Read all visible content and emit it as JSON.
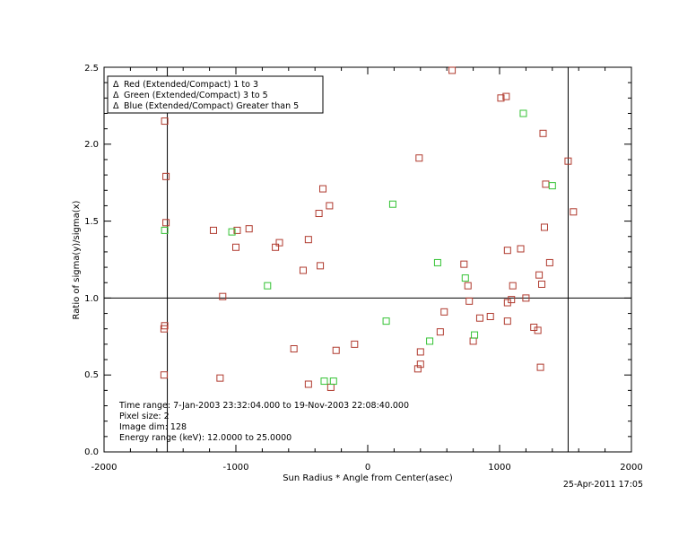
{
  "chart_data": {
    "type": "scatter",
    "title": "",
    "xlabel": "Sun Radius * Angle from Center(asec)",
    "ylabel": "Ratio of sigma(y)/sigma(x)",
    "xlim": [
      -2000,
      2000
    ],
    "ylim": [
      0.0,
      2.5
    ],
    "x_ticks": [
      "-2000",
      "-1000",
      "0",
      "1000",
      "2000"
    ],
    "y_ticks": [
      "0.0",
      "0.5",
      "1.0",
      "1.5",
      "2.0",
      "2.5"
    ],
    "reference_lines": {
      "vertical": [
        -1520,
        1520
      ],
      "horizontal": [
        1.0
      ]
    },
    "grid": false,
    "legend": {
      "placement": "top-left",
      "symbol": "Δ",
      "entries": [
        {
          "label": "Red (Extended/Compact) 1 to 3",
          "color": "#c0392b"
        },
        {
          "label": "Green (Extended/Compact) 3 to 5",
          "color": "#33c233"
        },
        {
          "label": "Blue (Extended/Compact) Greater than 5",
          "color": "#2a2aa0"
        }
      ]
    },
    "series": [
      {
        "name": "Red (Extended/Compact) 1 to 3",
        "color": "#b03a2e",
        "marker": "square",
        "points": [
          [
            -1540,
            2.15
          ],
          [
            -1530,
            1.79
          ],
          [
            -1530,
            1.49
          ],
          [
            -1540,
            0.82
          ],
          [
            -1545,
            0.8
          ],
          [
            -1545,
            0.5
          ],
          [
            -1170,
            1.44
          ],
          [
            -1100,
            1.01
          ],
          [
            -1120,
            0.48
          ],
          [
            -1000,
            1.33
          ],
          [
            -990,
            1.44
          ],
          [
            -900,
            1.45
          ],
          [
            -700,
            1.33
          ],
          [
            -670,
            1.36
          ],
          [
            -560,
            0.67
          ],
          [
            -490,
            1.18
          ],
          [
            -450,
            1.38
          ],
          [
            -450,
            0.44
          ],
          [
            -370,
            1.55
          ],
          [
            -360,
            1.21
          ],
          [
            -340,
            1.71
          ],
          [
            -290,
            1.6
          ],
          [
            -280,
            0.42
          ],
          [
            -240,
            0.66
          ],
          [
            -100,
            0.7
          ],
          [
            380,
            0.54
          ],
          [
            390,
            1.91
          ],
          [
            400,
            0.57
          ],
          [
            400,
            0.65
          ],
          [
            640,
            2.48
          ],
          [
            550,
            0.78
          ],
          [
            580,
            0.91
          ],
          [
            730,
            1.22
          ],
          [
            760,
            1.08
          ],
          [
            770,
            0.98
          ],
          [
            800,
            0.72
          ],
          [
            850,
            0.87
          ],
          [
            930,
            0.88
          ],
          [
            1010,
            2.3
          ],
          [
            1050,
            2.31
          ],
          [
            1060,
            1.31
          ],
          [
            1060,
            0.97
          ],
          [
            1060,
            0.85
          ],
          [
            1090,
            0.99
          ],
          [
            1100,
            1.08
          ],
          [
            1160,
            1.32
          ],
          [
            1200,
            1.0
          ],
          [
            1260,
            0.81
          ],
          [
            1290,
            0.79
          ],
          [
            1300,
            1.15
          ],
          [
            1310,
            0.55
          ],
          [
            1320,
            1.09
          ],
          [
            1330,
            2.07
          ],
          [
            1340,
            1.46
          ],
          [
            1350,
            1.74
          ],
          [
            1380,
            1.23
          ],
          [
            1520,
            1.89
          ],
          [
            1560,
            1.56
          ]
        ]
      },
      {
        "name": "Green (Extended/Compact) 3 to 5",
        "color": "#33c233",
        "marker": "square",
        "points": [
          [
            -1540,
            1.44
          ],
          [
            -1030,
            1.43
          ],
          [
            -760,
            1.08
          ],
          [
            -330,
            0.46
          ],
          [
            -260,
            0.46
          ],
          [
            140,
            0.85
          ],
          [
            190,
            1.61
          ],
          [
            470,
            0.72
          ],
          [
            530,
            1.23
          ],
          [
            740,
            1.13
          ],
          [
            810,
            0.76
          ],
          [
            1180,
            2.2
          ],
          [
            1400,
            1.73
          ]
        ]
      }
    ]
  },
  "info": {
    "time_range": "Time range:  7-Jan-2003 23:32:04.000 to 19-Nov-2003 22:08:40.000",
    "pixel_size": "Pixel size: 2",
    "image_dim": "Image dim: 128",
    "energy_range": "Energy range (keV): 12.0000 to 25.0000"
  },
  "timestamp": "25-Apr-2011 17:05"
}
